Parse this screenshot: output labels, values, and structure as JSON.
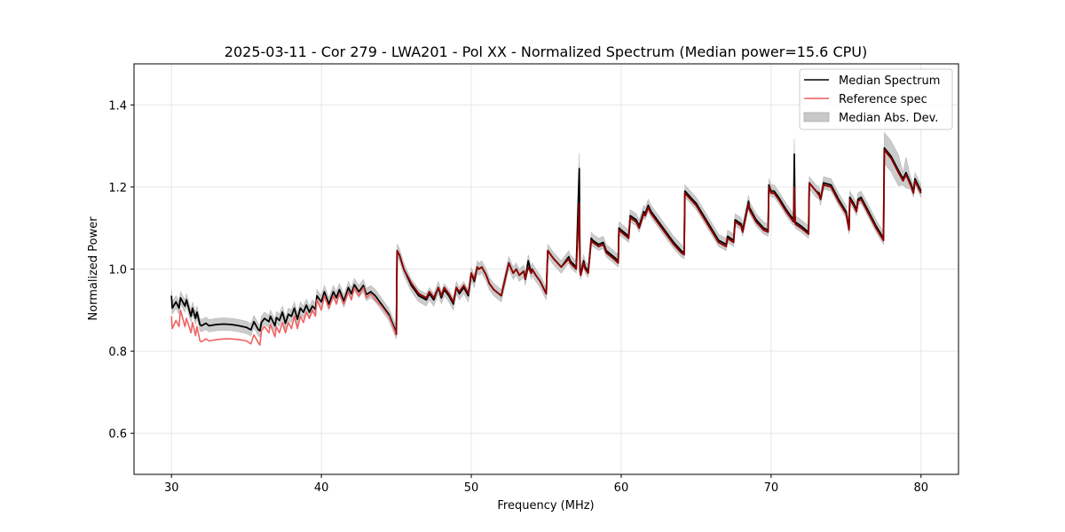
{
  "chart_data": {
    "type": "line",
    "title": "2025-03-11 - Cor 279 - LWA201 - Pol XX - Normalized Spectrum (Median power=15.6 CPU)",
    "xlabel": "Frequency (MHz)",
    "ylabel": "Normalized Power",
    "xlim": [
      27.5,
      82.5
    ],
    "ylim": [
      0.5,
      1.5
    ],
    "xticks": [
      30,
      40,
      50,
      60,
      70,
      80
    ],
    "xtick_labels": [
      "30",
      "40",
      "50",
      "60",
      "70",
      "80"
    ],
    "yticks": [
      0.6,
      0.8,
      1.0,
      1.2,
      1.4
    ],
    "ytick_labels": [
      "0.6",
      "0.8",
      "1.0",
      "1.2",
      "1.4"
    ],
    "grid": true,
    "legend_position": "top-right",
    "legend": [
      {
        "label": "Median Spectrum",
        "kind": "line",
        "color": "#000000"
      },
      {
        "label": "Reference spec",
        "kind": "line",
        "color": "#f05a5a"
      },
      {
        "label": "Median Abs. Dev.",
        "kind": "patch",
        "color": "#c8c8c8"
      }
    ],
    "mad_halfwidth": 0.015,
    "series": [
      {
        "name": "Median Spectrum",
        "color": "#000000",
        "x": [
          30.0,
          30.05,
          30.3,
          30.5,
          30.6,
          30.9,
          31.0,
          31.3,
          31.4,
          31.6,
          31.7,
          31.9,
          32.0,
          32.3,
          32.5,
          33.0,
          33.5,
          34.0,
          34.5,
          35.0,
          35.3,
          35.5,
          35.8,
          35.9,
          36.0,
          36.2,
          36.5,
          36.6,
          36.9,
          37.0,
          37.2,
          37.4,
          37.6,
          37.8,
          38.0,
          38.2,
          38.4,
          38.6,
          38.8,
          39.0,
          39.2,
          39.4,
          39.6,
          39.7,
          40.0,
          40.2,
          40.5,
          40.8,
          41.0,
          41.2,
          41.5,
          41.8,
          42.0,
          42.2,
          42.5,
          42.8,
          43.0,
          43.3,
          43.6,
          44.0,
          44.5,
          45.0,
          45.05,
          45.2,
          45.5,
          46.0,
          46.5,
          47.0,
          47.2,
          47.5,
          47.8,
          48.0,
          48.2,
          48.5,
          48.8,
          49.0,
          49.2,
          49.5,
          49.8,
          50.0,
          50.2,
          50.4,
          50.5,
          50.7,
          51.0,
          51.2,
          51.5,
          52.0,
          52.5,
          52.8,
          53.0,
          53.2,
          53.5,
          53.6,
          53.8,
          54.0,
          54.05,
          54.3,
          54.6,
          55.0,
          55.1,
          55.5,
          56.0,
          56.5,
          56.6,
          57.0,
          57.2,
          57.25,
          57.3,
          57.5,
          57.6,
          57.8,
          58.0,
          58.1,
          58.5,
          58.8,
          59.0,
          59.5,
          59.8,
          59.85,
          60.0,
          60.5,
          60.6,
          61.0,
          61.2,
          61.5,
          61.6,
          61.8,
          62.0,
          62.5,
          63.0,
          63.5,
          64.0,
          64.2,
          64.25,
          64.5,
          65.0,
          65.5,
          66.0,
          66.5,
          67.0,
          67.1,
          67.5,
          67.6,
          68.0,
          68.1,
          68.5,
          68.55,
          69.0,
          69.5,
          69.8,
          69.85,
          70.0,
          70.2,
          70.5,
          71.0,
          71.5,
          71.55,
          71.6,
          72.0,
          72.5,
          72.55,
          73.0,
          73.2,
          73.3,
          73.5,
          74.0,
          74.5,
          75.0,
          75.2,
          75.25,
          75.5,
          75.7,
          75.8,
          76.0,
          76.5,
          77.0,
          77.5,
          77.55,
          78.0,
          78.5,
          78.8,
          79.0,
          79.3,
          79.5,
          79.6,
          80.0
        ],
        "values": [
          0.935,
          0.905,
          0.92,
          0.905,
          0.93,
          0.91,
          0.925,
          0.885,
          0.905,
          0.88,
          0.895,
          0.865,
          0.862,
          0.868,
          0.862,
          0.865,
          0.866,
          0.865,
          0.862,
          0.858,
          0.852,
          0.872,
          0.852,
          0.85,
          0.87,
          0.88,
          0.872,
          0.885,
          0.862,
          0.882,
          0.875,
          0.895,
          0.868,
          0.89,
          0.885,
          0.905,
          0.878,
          0.905,
          0.895,
          0.912,
          0.895,
          0.91,
          0.902,
          0.935,
          0.92,
          0.945,
          0.915,
          0.945,
          0.93,
          0.95,
          0.922,
          0.955,
          0.94,
          0.962,
          0.945,
          0.96,
          0.938,
          0.945,
          0.935,
          0.915,
          0.89,
          0.845,
          1.045,
          1.035,
          1.0,
          0.96,
          0.935,
          0.925,
          0.94,
          0.925,
          0.955,
          0.93,
          0.95,
          0.935,
          0.915,
          0.955,
          0.94,
          0.955,
          0.935,
          0.99,
          0.97,
          1.005,
          1.0,
          1.005,
          0.985,
          0.965,
          0.95,
          0.935,
          1.015,
          0.99,
          1.0,
          0.985,
          0.995,
          0.975,
          1.02,
          0.99,
          1.0,
          0.985,
          0.97,
          0.94,
          1.045,
          1.025,
          1.005,
          1.03,
          1.02,
          1.005,
          1.245,
          1.0,
          0.99,
          1.02,
          1.005,
          0.995,
          1.075,
          1.07,
          1.06,
          1.065,
          1.045,
          1.03,
          1.02,
          1.1,
          1.095,
          1.08,
          1.13,
          1.12,
          1.105,
          1.14,
          1.135,
          1.155,
          1.14,
          1.115,
          1.09,
          1.065,
          1.045,
          1.04,
          1.19,
          1.18,
          1.16,
          1.13,
          1.1,
          1.07,
          1.06,
          1.08,
          1.07,
          1.12,
          1.11,
          1.095,
          1.165,
          1.15,
          1.12,
          1.1,
          1.095,
          1.205,
          1.19,
          1.19,
          1.175,
          1.145,
          1.12,
          1.28,
          1.115,
          1.105,
          1.09,
          1.21,
          1.19,
          1.185,
          1.17,
          1.21,
          1.205,
          1.17,
          1.14,
          1.1,
          1.175,
          1.16,
          1.145,
          1.17,
          1.175,
          1.14,
          1.105,
          1.075,
          1.295,
          1.275,
          1.24,
          1.22,
          1.235,
          1.21,
          1.19,
          1.22,
          1.19
        ]
      },
      {
        "name": "Reference spec",
        "color": "#f05a5a",
        "x": [
          30.0,
          30.05,
          30.3,
          30.5,
          30.6,
          30.9,
          31.0,
          31.3,
          31.4,
          31.6,
          31.7,
          31.9,
          32.0,
          32.3,
          32.5,
          33.0,
          33.5,
          34.0,
          34.5,
          35.0,
          35.3,
          35.5,
          35.8,
          35.9,
          36.0,
          36.2,
          36.5,
          36.6,
          36.9,
          37.0,
          37.2,
          37.4,
          37.6,
          37.8,
          38.0,
          38.2,
          38.4,
          38.6,
          38.8,
          39.0,
          39.2,
          39.4,
          39.6,
          39.7,
          40.0,
          40.2,
          40.5,
          40.8,
          41.0,
          41.2,
          41.5,
          41.8,
          42.0,
          42.2,
          42.5,
          42.8,
          43.0,
          43.3,
          43.6,
          44.0,
          44.5,
          45.0,
          45.05,
          45.2,
          45.5,
          46.0,
          46.5,
          47.0,
          47.2,
          47.5,
          47.8,
          48.0,
          48.2,
          48.5,
          48.8,
          49.0,
          49.2,
          49.5,
          49.8,
          50.0,
          50.2,
          50.4,
          50.5,
          50.7,
          51.0,
          51.2,
          51.5,
          52.0,
          52.5,
          52.8,
          53.0,
          53.2,
          53.5,
          53.6,
          53.8,
          54.0,
          54.05,
          54.3,
          54.6,
          55.0,
          55.1,
          55.5,
          56.0,
          56.5,
          56.6,
          57.0,
          57.2,
          57.25,
          57.3,
          57.5,
          57.6,
          57.8,
          58.0,
          58.1,
          58.5,
          58.8,
          59.0,
          59.5,
          59.8,
          59.85,
          60.0,
          60.5,
          60.6,
          61.0,
          61.2,
          61.5,
          61.6,
          61.8,
          62.0,
          62.5,
          63.0,
          63.5,
          64.0,
          64.2,
          64.25,
          64.5,
          65.0,
          65.5,
          66.0,
          66.5,
          67.0,
          67.1,
          67.5,
          67.6,
          68.0,
          68.1,
          68.5,
          68.55,
          69.0,
          69.5,
          69.8,
          69.85,
          70.0,
          70.2,
          70.5,
          71.0,
          71.5,
          71.55,
          71.6,
          72.0,
          72.5,
          72.55,
          73.0,
          73.2,
          73.3,
          73.5,
          74.0,
          74.5,
          75.0,
          75.2,
          75.25,
          75.5,
          75.7,
          75.8,
          76.0,
          76.5,
          77.0,
          77.5,
          77.55,
          78.0,
          78.5,
          78.8,
          79.0,
          79.3,
          79.5,
          79.6,
          80.0
        ],
        "values": [
          0.885,
          0.855,
          0.875,
          0.86,
          0.9,
          0.86,
          0.88,
          0.845,
          0.87,
          0.838,
          0.86,
          0.825,
          0.823,
          0.83,
          0.825,
          0.828,
          0.83,
          0.83,
          0.828,
          0.825,
          0.818,
          0.84,
          0.82,
          0.815,
          0.85,
          0.86,
          0.845,
          0.865,
          0.835,
          0.86,
          0.845,
          0.87,
          0.845,
          0.87,
          0.855,
          0.885,
          0.855,
          0.885,
          0.87,
          0.895,
          0.88,
          0.9,
          0.885,
          0.925,
          0.9,
          0.935,
          0.905,
          0.935,
          0.915,
          0.94,
          0.915,
          0.945,
          0.925,
          0.955,
          0.935,
          0.955,
          0.93,
          0.94,
          0.925,
          0.91,
          0.885,
          0.84,
          1.045,
          1.035,
          1.0,
          0.965,
          0.94,
          0.93,
          0.945,
          0.93,
          0.955,
          0.935,
          0.955,
          0.94,
          0.92,
          0.955,
          0.945,
          0.96,
          0.94,
          0.99,
          0.975,
          1.005,
          1.0,
          1.005,
          0.985,
          0.965,
          0.95,
          0.935,
          1.015,
          0.99,
          1.0,
          0.985,
          0.995,
          0.975,
          1.005,
          0.99,
          1.0,
          0.985,
          0.97,
          0.94,
          1.045,
          1.025,
          1.005,
          1.025,
          1.015,
          1.0,
          1.16,
          0.995,
          0.985,
          1.015,
          1.0,
          0.99,
          1.07,
          1.065,
          1.055,
          1.06,
          1.04,
          1.025,
          1.015,
          1.095,
          1.09,
          1.075,
          1.125,
          1.115,
          1.1,
          1.135,
          1.13,
          1.15,
          1.135,
          1.11,
          1.085,
          1.06,
          1.04,
          1.035,
          1.185,
          1.175,
          1.155,
          1.125,
          1.095,
          1.065,
          1.055,
          1.075,
          1.065,
          1.115,
          1.105,
          1.09,
          1.16,
          1.145,
          1.115,
          1.095,
          1.09,
          1.2,
          1.185,
          1.185,
          1.17,
          1.14,
          1.115,
          1.2,
          1.11,
          1.1,
          1.085,
          1.21,
          1.19,
          1.18,
          1.17,
          1.205,
          1.2,
          1.165,
          1.135,
          1.095,
          1.17,
          1.155,
          1.14,
          1.165,
          1.17,
          1.135,
          1.1,
          1.07,
          1.29,
          1.27,
          1.235,
          1.215,
          1.23,
          1.205,
          1.185,
          1.215,
          1.185
        ]
      }
    ]
  }
}
